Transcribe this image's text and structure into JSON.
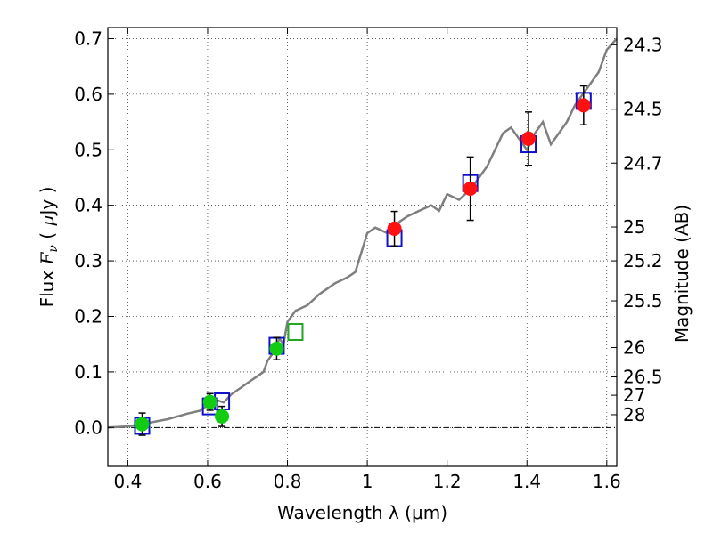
{
  "chart_data": {
    "type": "scatter",
    "xlabel": "Wavelength  λ (μm)",
    "ylabel_parts": [
      "Flux  ",
      "F",
      "ν",
      "  ( ",
      "μ",
      "Jy )"
    ],
    "y2label": "Magnitude (AB)",
    "xlim": [
      0.35,
      1.625
    ],
    "ylim": [
      -0.07,
      0.72
    ],
    "grid": true,
    "x_ticks": [
      0.4,
      0.6,
      0.8,
      1.0,
      1.2,
      1.4,
      1.6
    ],
    "x_tick_labels": [
      "0.4",
      "0.6",
      "0.8",
      "1",
      "1.2",
      "1.4",
      "1.6"
    ],
    "y_ticks": [
      0.0,
      0.1,
      0.2,
      0.3,
      0.4,
      0.5,
      0.6,
      0.7
    ],
    "y_tick_labels": [
      "0.0",
      "0.1",
      "0.2",
      "0.3",
      "0.4",
      "0.5",
      "0.6",
      "0.7"
    ],
    "y2_ticks": [
      {
        "label": "24.3",
        "flux": 0.689
      },
      {
        "label": "24.5",
        "flux": 0.573
      },
      {
        "label": "24.7",
        "flux": 0.476
      },
      {
        "label": "25",
        "flux": 0.361
      },
      {
        "label": "25.2",
        "flux": 0.3
      },
      {
        "label": "25.5",
        "flux": 0.228
      },
      {
        "label": "26",
        "flux": 0.144
      },
      {
        "label": "26.5",
        "flux": 0.091
      },
      {
        "label": "27",
        "flux": 0.058
      },
      {
        "label": "28",
        "flux": 0.023
      }
    ],
    "model_spectrum": {
      "color": "#7f7f7f",
      "x": [
        0.35,
        0.4,
        0.45,
        0.5,
        0.55,
        0.58,
        0.6,
        0.62,
        0.64,
        0.66,
        0.68,
        0.7,
        0.72,
        0.74,
        0.75,
        0.76,
        0.78,
        0.79,
        0.8,
        0.82,
        0.85,
        0.88,
        0.9,
        0.92,
        0.95,
        0.97,
        1.0,
        1.02,
        1.05,
        1.08,
        1.1,
        1.13,
        1.16,
        1.18,
        1.2,
        1.23,
        1.26,
        1.28,
        1.3,
        1.32,
        1.34,
        1.36,
        1.38,
        1.4,
        1.42,
        1.44,
        1.46,
        1.48,
        1.5,
        1.52,
        1.54,
        1.56,
        1.58,
        1.6,
        1.625
      ],
      "y": [
        0.0,
        0.002,
        0.008,
        0.015,
        0.025,
        0.03,
        0.04,
        0.05,
        0.045,
        0.06,
        0.07,
        0.08,
        0.09,
        0.1,
        0.12,
        0.13,
        0.16,
        0.15,
        0.19,
        0.21,
        0.22,
        0.24,
        0.25,
        0.26,
        0.27,
        0.28,
        0.35,
        0.36,
        0.35,
        0.37,
        0.38,
        0.39,
        0.4,
        0.39,
        0.42,
        0.41,
        0.43,
        0.45,
        0.47,
        0.5,
        0.53,
        0.54,
        0.52,
        0.5,
        0.53,
        0.55,
        0.51,
        0.53,
        0.55,
        0.58,
        0.6,
        0.62,
        0.64,
        0.68,
        0.7
      ]
    },
    "series": [
      {
        "marker": "square",
        "color": "#1010cc",
        "points": [
          {
            "x": 0.436,
            "y": 0.003
          },
          {
            "x": 0.606,
            "y": 0.038
          },
          {
            "x": 0.636,
            "y": 0.047
          },
          {
            "x": 0.773,
            "y": 0.147
          },
          {
            "x": 0.82,
            "y": 0.172
          },
          {
            "x": 1.068,
            "y": 0.341
          },
          {
            "x": 1.258,
            "y": 0.44
          },
          {
            "x": 1.404,
            "y": 0.51
          },
          {
            "x": 1.542,
            "y": 0.588
          }
        ]
      },
      {
        "marker": "square",
        "color": "#22aa22",
        "points": [
          {
            "x": 0.82,
            "y": 0.172
          }
        ]
      },
      {
        "marker": "circle",
        "color": "#11cc11",
        "points": [
          {
            "x": 0.436,
            "y": 0.006,
            "err": 0.02
          },
          {
            "x": 0.606,
            "y": 0.046,
            "err": 0.015
          },
          {
            "x": 0.636,
            "y": 0.02,
            "err": 0.018
          },
          {
            "x": 0.773,
            "y": 0.142,
            "err": 0.02
          }
        ]
      },
      {
        "marker": "circle",
        "color": "#ff1111",
        "points": [
          {
            "x": 1.068,
            "y": 0.358,
            "err": 0.031
          },
          {
            "x": 1.258,
            "y": 0.43,
            "err": 0.057
          },
          {
            "x": 1.404,
            "y": 0.52,
            "err": 0.048
          },
          {
            "x": 1.542,
            "y": 0.58,
            "err": 0.035
          }
        ]
      }
    ]
  }
}
